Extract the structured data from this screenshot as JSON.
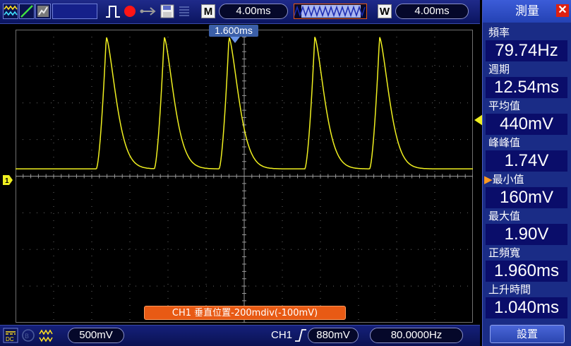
{
  "toolbar": {
    "zoom_key_label": "M",
    "main_timebase": "4.00ms",
    "window_key_label": "W",
    "window_timebase": "4.00ms"
  },
  "screen": {
    "trigger_time": "1.600ms",
    "channel_marker": "1",
    "status_message": "CH1 垂直位置-200mdiv(-100mV)"
  },
  "measure": {
    "title": "測量",
    "items": [
      {
        "label": "頻率",
        "value": "79.74Hz"
      },
      {
        "label": "週期",
        "value": "12.54ms"
      },
      {
        "label": "平均值",
        "value": "440mV"
      },
      {
        "label": "峰峰值",
        "value": "1.74V"
      },
      {
        "label": "最小值",
        "value": "160mV"
      },
      {
        "label": "最大值",
        "value": "1.90V"
      },
      {
        "label": "正頻寬",
        "value": "1.960ms"
      },
      {
        "label": "上升時間",
        "value": "1.040ms"
      }
    ],
    "settings_label": "設置"
  },
  "bottom": {
    "ch1_scale": "500mV",
    "trigger_channel": "CH1",
    "trigger_level": "880mV",
    "frequency_readout": "80.0000Hz"
  },
  "colors": {
    "trace": "#f0f020",
    "panel": "#1a2c86",
    "value_box": "#0a0d6a",
    "status_bg": "#e85a14",
    "toolbar": "#1f2a8a"
  },
  "waveform": {
    "volts_per_div": 0.5,
    "ms_per_div": 4.0,
    "min_v": 0.16,
    "max_v": 1.9,
    "pulse_peaks_div": [
      -3.62,
      -2.1,
      -0.4,
      1.85,
      3.55
    ],
    "rise_ms": 1.04,
    "baseline_div_above_center": 0.2,
    "peak_div_above_center": 3.8
  }
}
